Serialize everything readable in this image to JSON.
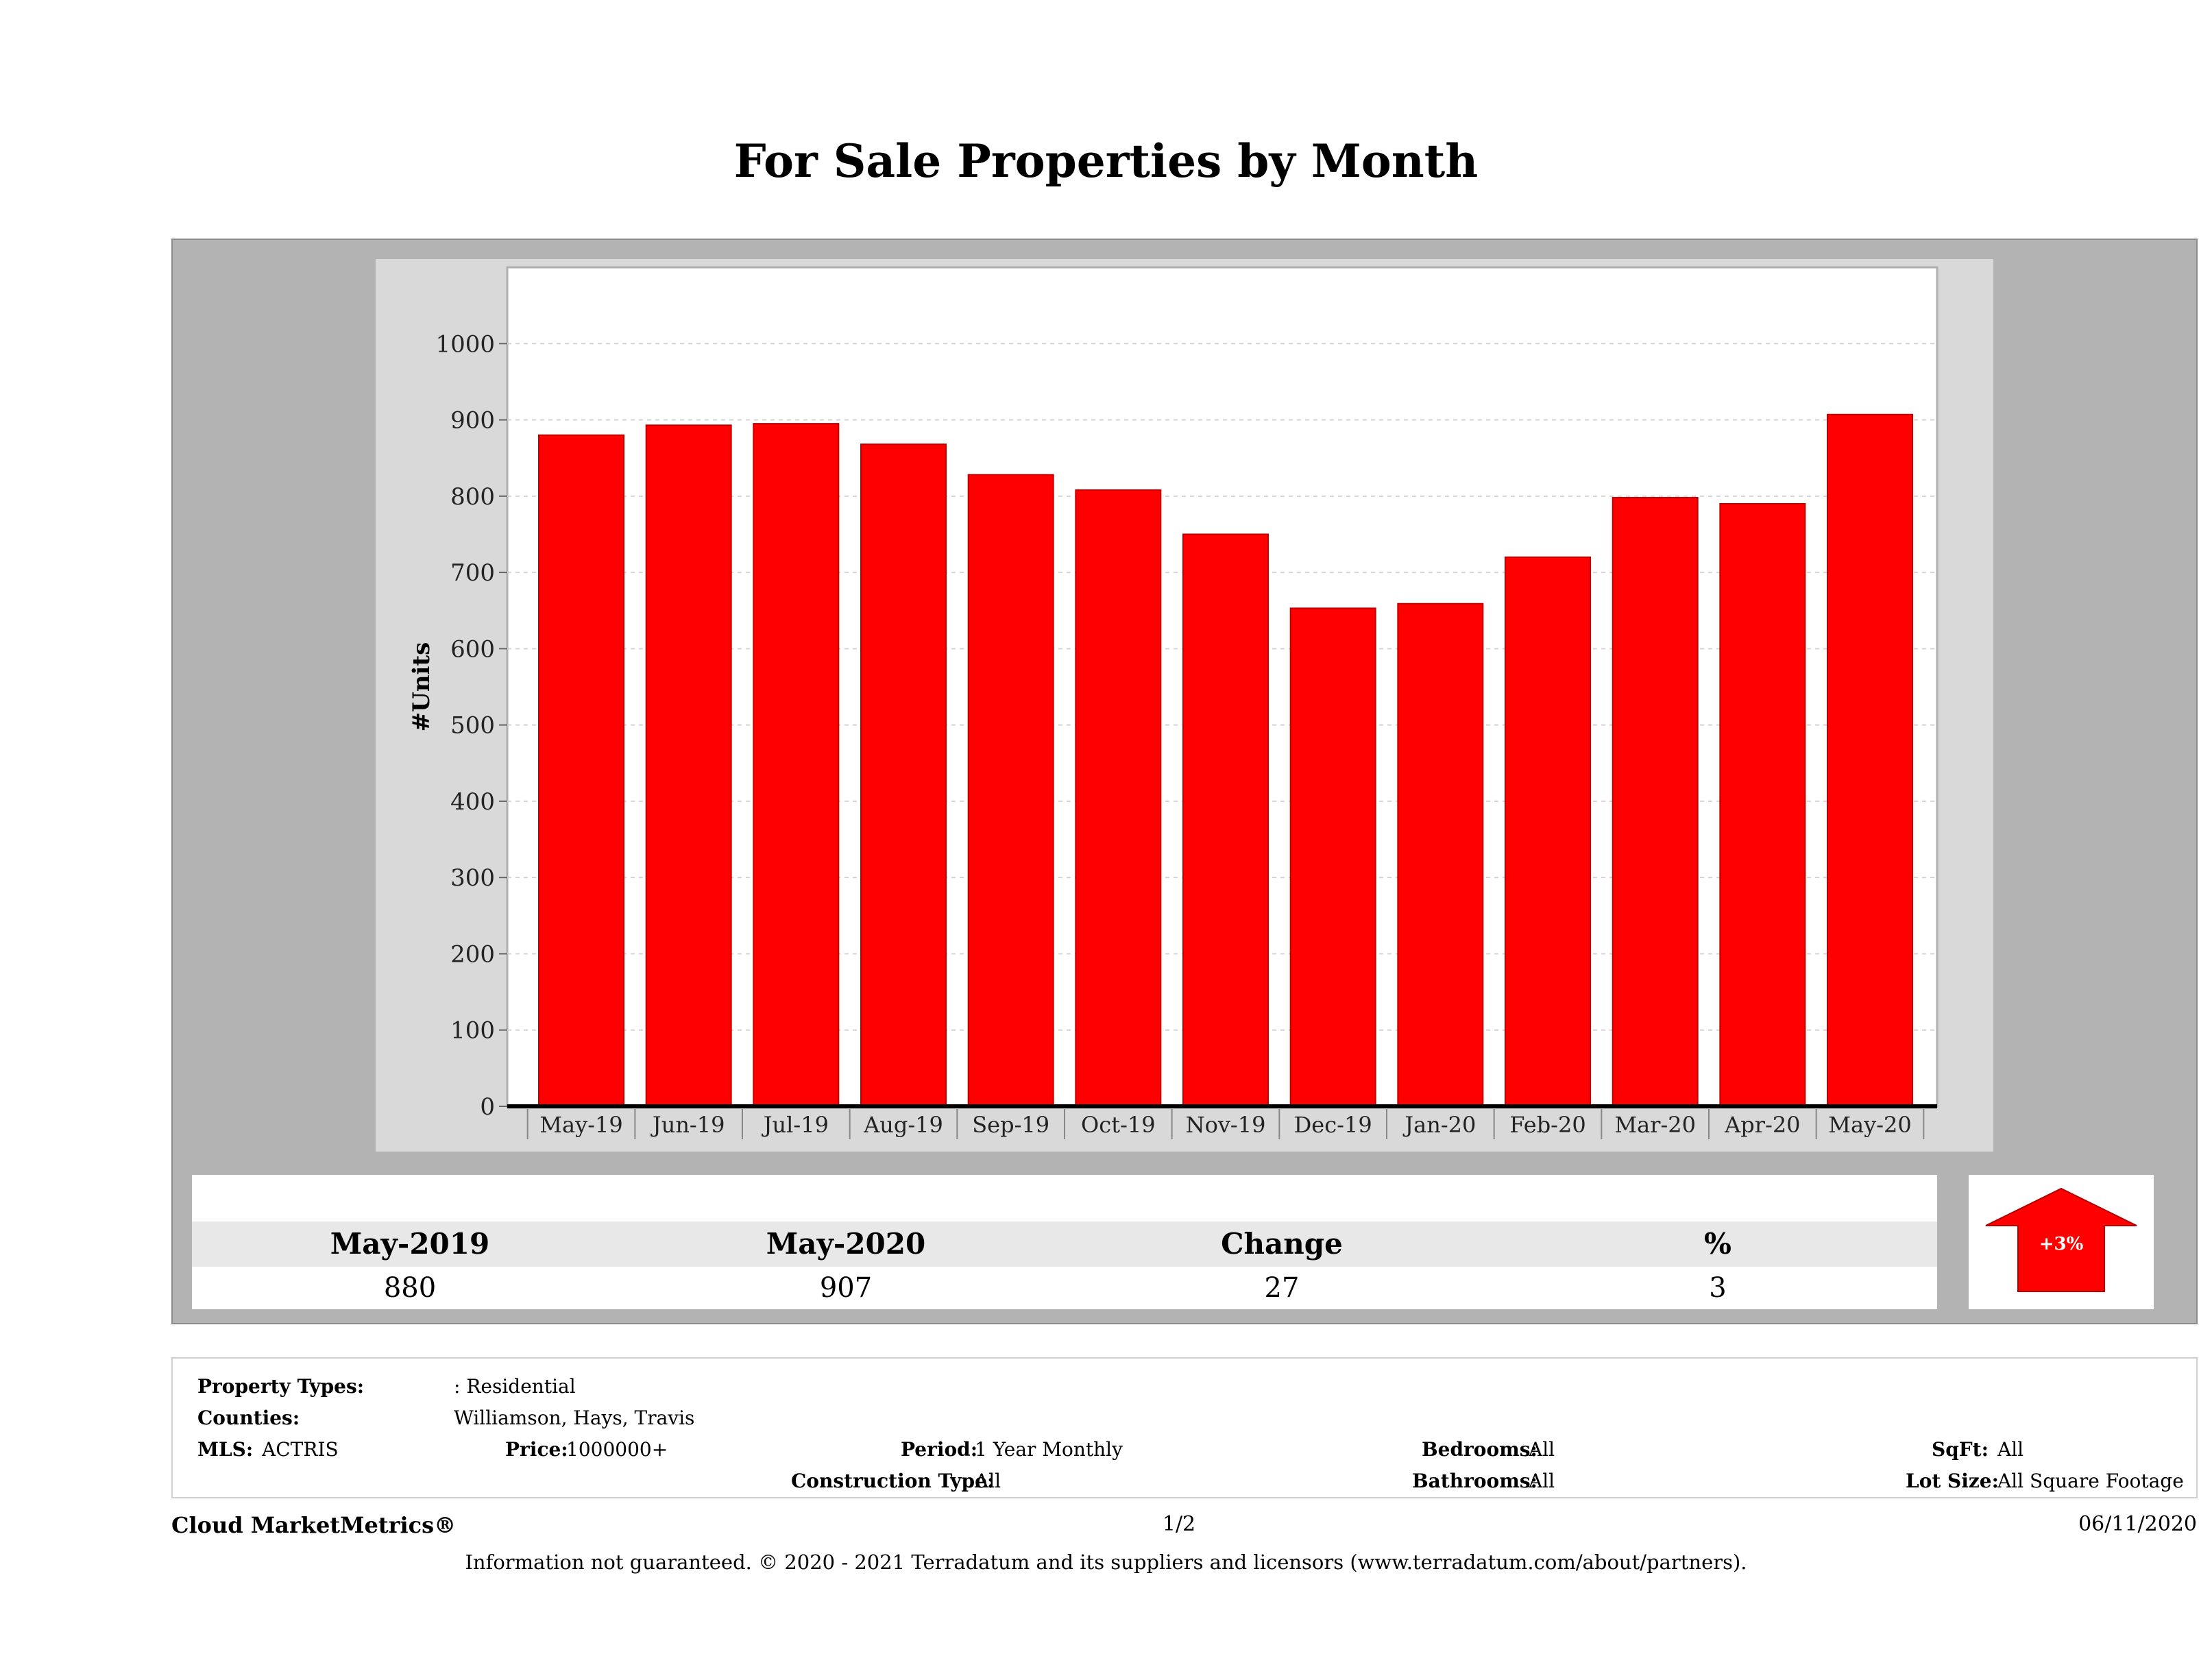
{
  "title": "For Sale Properties by Month",
  "chart_data": {
    "type": "bar",
    "title": "For Sale Properties by Month",
    "xlabel": "",
    "ylabel": "#Units",
    "ylim": [
      0,
      1100
    ],
    "yticks": [
      0,
      100,
      200,
      300,
      400,
      500,
      600,
      700,
      800,
      900,
      1000
    ],
    "categories": [
      "May-19",
      "Jun-19",
      "Jul-19",
      "Aug-19",
      "Sep-19",
      "Oct-19",
      "Nov-19",
      "Dec-19",
      "Jan-20",
      "Feb-20",
      "Mar-20",
      "Apr-20",
      "May-20"
    ],
    "values": [
      880,
      893,
      895,
      868,
      828,
      808,
      750,
      653,
      659,
      720,
      798,
      790,
      907
    ],
    "bar_color": "#ff0000",
    "grid": true
  },
  "summary": {
    "headers": [
      "May-2019",
      "May-2020",
      "Change",
      "%"
    ],
    "values": [
      "880",
      "907",
      "27",
      "3"
    ],
    "badge": "+3%",
    "badge_color": "#ff0000"
  },
  "filters": {
    "property_types_label": "Property Types:",
    "property_types_value": ": Residential",
    "counties_label": "Counties:",
    "counties_value": "Williamson, Hays, Travis",
    "mls_label": "MLS:",
    "mls_value": "ACTRIS",
    "price_label": "Price:",
    "price_value": "1000000+",
    "period_label": "Period:",
    "period_value": "1 Year Monthly",
    "construction_label": "Construction Type:",
    "construction_value": "All",
    "bedrooms_label": "Bedrooms:",
    "bedrooms_value": "All",
    "bathrooms_label": "Bathrooms:",
    "bathrooms_value": "All",
    "sqft_label": "SqFt:",
    "sqft_value": "All",
    "lotsize_label": "Lot Size:",
    "lotsize_value": "All Square Footage"
  },
  "footer": {
    "brand": "Cloud MarketMetrics®",
    "page": "1/2",
    "date": "06/11/2020",
    "disclaimer": "Information not guaranteed. © 2020 - 2021 Terradatum and its suppliers and licensors (www.terradatum.com/about/partners)."
  }
}
